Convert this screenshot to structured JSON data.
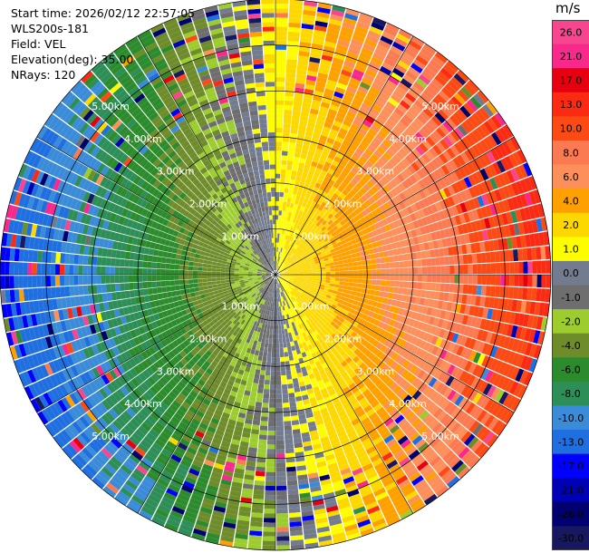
{
  "header": {
    "start_time": "Start time: 2026/02/12 22:57:05",
    "instrument": "WLS200s-181",
    "field": "Field: VEL",
    "elevation": "Elevation(deg): 35.00",
    "nrays": "NRays: 120"
  },
  "colorbar": {
    "unit": "m/s",
    "levels": [
      {
        "value": "26.0",
        "color": "#f7468f"
      },
      {
        "value": "21.0",
        "color": "#f8298a"
      },
      {
        "value": "17.0",
        "color": "#e70010"
      },
      {
        "value": "13.0",
        "color": "#fb2a13"
      },
      {
        "value": "10.0",
        "color": "#fc4a14"
      },
      {
        "value": "8.0",
        "color": "#fc7a52"
      },
      {
        "value": "6.0",
        "color": "#fd8f5a"
      },
      {
        "value": "4.0",
        "color": "#fea000"
      },
      {
        "value": "2.0",
        "color": "#fdd800"
      },
      {
        "value": "1.0",
        "color": "#fdfd00"
      },
      {
        "value": "0.0",
        "color": "#737b8f"
      },
      {
        "value": "-1.0",
        "color": "#6e6e6e"
      },
      {
        "value": "-2.0",
        "color": "#9ccc2e"
      },
      {
        "value": "-4.0",
        "color": "#6e8c2a"
      },
      {
        "value": "-6.0",
        "color": "#2c8b2c"
      },
      {
        "value": "-8.0",
        "color": "#2d8e57"
      },
      {
        "value": "-10.0",
        "color": "#3a8bd8"
      },
      {
        "value": "-13.0",
        "color": "#1f6fe0"
      },
      {
        "value": "-17.0",
        "color": "#0000ff"
      },
      {
        "value": "-21.0",
        "color": "#0000b4"
      },
      {
        "value": "-26.0",
        "color": "#000070"
      },
      {
        "value": "-30.0",
        "color": "#181860"
      }
    ]
  },
  "chart_data": {
    "type": "heatmap",
    "projection": "polar-ppi",
    "field": "VEL",
    "elevation_deg": 35.0,
    "nrays": 120,
    "max_range_km": 6.0,
    "range_rings_km": [
      1.0,
      2.0,
      3.0,
      4.0,
      5.0
    ],
    "ring_labels": [
      "1.00km",
      "2.00km",
      "3.00km",
      "4.00km",
      "5.00km"
    ],
    "azimuth_lines_deg": [
      0,
      30,
      60,
      90,
      120,
      150,
      180,
      210,
      240,
      270,
      300,
      330
    ],
    "colorbar_range": [
      -30.0,
      26.0
    ],
    "pattern_notes": {
      "positive_direction": "east",
      "negative_direction": "west",
      "near_field_east": "yellow-orange (+1 to +4 m/s)",
      "near_field_west": "green (-2 to -4 m/s)",
      "far_field_east": "orange-salmon (+6 to +8 m/s)",
      "far_field_west": "blue (-10 to -13 m/s)"
    }
  }
}
